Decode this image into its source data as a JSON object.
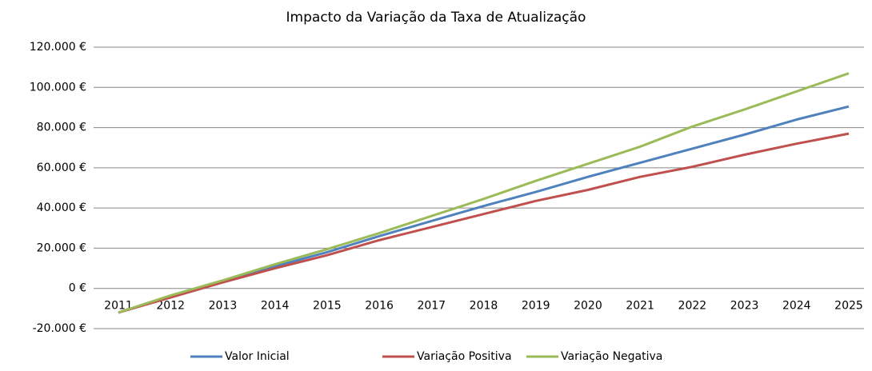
{
  "chart_data": {
    "type": "line",
    "title": "Impacto da Variação da Taxa de Atualização",
    "categories": [
      "2011",
      "2012",
      "2013",
      "2014",
      "2015",
      "2016",
      "2017",
      "2018",
      "2019",
      "2020",
      "2021",
      "2022",
      "2023",
      "2024",
      "2025"
    ],
    "series": [
      {
        "name": "Valor Inicial",
        "color": "#4f81bd",
        "values": [
          -12000,
          -4000,
          3500,
          11000,
          18000,
          26000,
          33500,
          41000,
          48000,
          55500,
          62500,
          69500,
          76500,
          84000,
          90500
        ]
      },
      {
        "name": "Variação Positiva",
        "color": "#c0504d",
        "values": [
          -12000,
          -4500,
          3000,
          10000,
          16500,
          24000,
          30500,
          37000,
          43500,
          49000,
          55500,
          60500,
          66500,
          72000,
          77000
        ]
      },
      {
        "name": "Variação Negativa",
        "color": "#9bbb59",
        "values": [
          -12000,
          -3500,
          4000,
          12000,
          19500,
          27500,
          36000,
          44500,
          53500,
          62000,
          70500,
          80500,
          89000,
          98000,
          107000
        ]
      }
    ],
    "ylim": [
      -20000,
      120000
    ],
    "yticks": [
      {
        "value": -20000,
        "label": "-20.000 €"
      },
      {
        "value": 0,
        "label": "0 €"
      },
      {
        "value": 20000,
        "label": "20.000 €"
      },
      {
        "value": 40000,
        "label": "40.000 €"
      },
      {
        "value": 60000,
        "label": "60.000 €"
      },
      {
        "value": 80000,
        "label": "80.000 €"
      },
      {
        "value": 100000,
        "label": "100.000 €"
      },
      {
        "value": 120000,
        "label": "120.000 €"
      }
    ],
    "grid": true,
    "legend": "bottom"
  }
}
